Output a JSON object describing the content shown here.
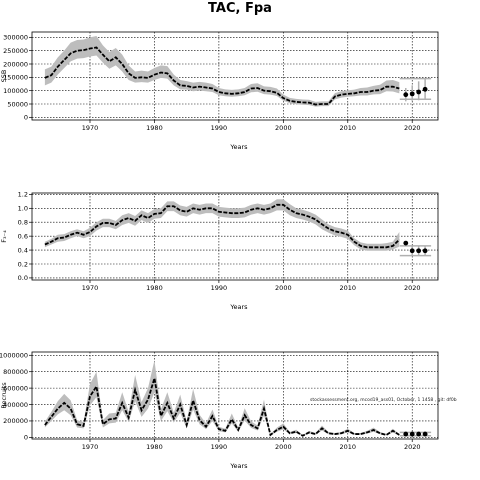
{
  "title": "TAC, Fpa",
  "watermark": "stockassessment.org, mcod19_ass01, October, 1 1458 , git: df0b",
  "colors": {
    "line": "#000000",
    "band": "#bdbdbd",
    "grid": "#000000",
    "forecast_band": "#b0b0b0"
  },
  "chart_data": [
    {
      "type": "line",
      "title": "",
      "xlabel": "Years",
      "ylabel": "SSB",
      "xlim": [
        1961,
        2024
      ],
      "ylim": [
        -10000,
        320000
      ],
      "xticks": [
        1970,
        1980,
        1990,
        2000,
        2010,
        2020
      ],
      "yticks": [
        0,
        50000,
        100000,
        150000,
        200000,
        250000,
        300000
      ],
      "ytick_labels": [
        "0",
        "50000",
        "100000",
        "150000",
        "200000",
        "250000",
        "300000"
      ],
      "grid": true,
      "series": [
        {
          "x": [
            1963,
            1964,
            1965,
            1966,
            1967,
            1968,
            1969,
            1970,
            1971,
            1972,
            1973,
            1974,
            1975,
            1976,
            1977,
            1978,
            1979,
            1980,
            1981,
            1982,
            1983,
            1984,
            1985,
            1986,
            1987,
            1988,
            1989,
            1990,
            1991,
            1992,
            1993,
            1994,
            1995,
            1996,
            1997,
            1998,
            1999,
            2000,
            2001,
            2002,
            2003,
            2004,
            2005,
            2006,
            2007,
            2008,
            2009,
            2010,
            2011,
            2012,
            2013,
            2014,
            2015,
            2016,
            2017,
            2018
          ],
          "y": [
            148000,
            158000,
            190000,
            215000,
            240000,
            250000,
            252000,
            258000,
            262000,
            235000,
            210000,
            225000,
            200000,
            165000,
            148000,
            150000,
            148000,
            160000,
            168000,
            165000,
            138000,
            120000,
            118000,
            112000,
            115000,
            112000,
            108000,
            95000,
            90000,
            88000,
            90000,
            95000,
            108000,
            110000,
            100000,
            98000,
            92000,
            72000,
            62000,
            58000,
            56000,
            55000,
            48000,
            50000,
            50000,
            78000,
            85000,
            88000,
            90000,
            95000,
            95000,
            100000,
            102000,
            115000,
            115000,
            108000
          ],
          "lower": [
            120000,
            130000,
            160000,
            185000,
            210000,
            220000,
            222000,
            228000,
            232000,
            205000,
            182000,
            195000,
            172000,
            140000,
            130000,
            132000,
            130000,
            140000,
            148000,
            145000,
            120000,
            105000,
            104000,
            98000,
            100000,
            98000,
            95000,
            83000,
            79000,
            77000,
            79000,
            83000,
            94000,
            96000,
            87000,
            85000,
            80000,
            62000,
            53000,
            49000,
            47000,
            46000,
            40000,
            42000,
            42000,
            67000,
            74000,
            77000,
            79000,
            82000,
            82000,
            86000,
            87000,
            98000,
            97000,
            90000
          ],
          "upper": [
            180000,
            190000,
            225000,
            250000,
            280000,
            290000,
            292000,
            300000,
            305000,
            270000,
            245000,
            260000,
            235000,
            195000,
            172000,
            175000,
            172000,
            185000,
            195000,
            192000,
            160000,
            140000,
            136000,
            130000,
            133000,
            130000,
            125000,
            110000,
            105000,
            103000,
            105000,
            110000,
            125000,
            128000,
            116000,
            114000,
            108000,
            85000,
            73000,
            69000,
            67000,
            66000,
            58000,
            60000,
            60000,
            91000,
            98000,
            101000,
            104000,
            110000,
            112000,
            118000,
            122000,
            138000,
            140000,
            132000
          ]
        }
      ],
      "forecast": {
        "x": [
          2019,
          2020,
          2021,
          2022
        ],
        "y": [
          85000,
          88000,
          95000,
          105000
        ],
        "lower": [
          60000,
          62000,
          64000,
          68000
        ],
        "upper": [
          110000,
          120000,
          135000,
          145000
        ]
      }
    },
    {
      "type": "line",
      "title": "",
      "xlabel": "Years",
      "ylabel": "F₃₋₄",
      "xlim": [
        1961,
        2024
      ],
      "ylim": [
        -0.03,
        1.22
      ],
      "xticks": [
        1970,
        1980,
        1990,
        2000,
        2010,
        2020
      ],
      "yticks": [
        0,
        0.2,
        0.4,
        0.6,
        0.8,
        1.0,
        1.2
      ],
      "ytick_labels": [
        "0.0",
        "0.2",
        "0.4",
        "0.6",
        "0.8",
        "1.0",
        "1.2"
      ],
      "grid": true,
      "series": [
        {
          "x": [
            1963,
            1964,
            1965,
            1966,
            1967,
            1968,
            1969,
            1970,
            1971,
            1972,
            1973,
            1974,
            1975,
            1976,
            1977,
            1978,
            1979,
            1980,
            1981,
            1982,
            1983,
            1984,
            1985,
            1986,
            1987,
            1988,
            1989,
            1990,
            1991,
            1992,
            1993,
            1994,
            1995,
            1996,
            1997,
            1998,
            1999,
            2000,
            2001,
            2002,
            2003,
            2004,
            2005,
            2006,
            2007,
            2008,
            2009,
            2010,
            2011,
            2012,
            2013,
            2014,
            2015,
            2016,
            2017,
            2018
          ],
          "y": [
            0.48,
            0.52,
            0.57,
            0.58,
            0.62,
            0.65,
            0.62,
            0.66,
            0.74,
            0.79,
            0.79,
            0.76,
            0.83,
            0.86,
            0.82,
            0.9,
            0.86,
            0.92,
            0.93,
            1.03,
            1.03,
            0.97,
            0.95,
            1.0,
            0.98,
            1.0,
            1.0,
            0.95,
            0.94,
            0.93,
            0.93,
            0.94,
            0.98,
            1.0,
            0.98,
            1.0,
            1.05,
            1.05,
            0.98,
            0.93,
            0.91,
            0.88,
            0.84,
            0.77,
            0.71,
            0.67,
            0.65,
            0.62,
            0.52,
            0.46,
            0.44,
            0.44,
            0.44,
            0.44,
            0.46,
            0.55
          ],
          "lower": [
            0.44,
            0.48,
            0.52,
            0.53,
            0.57,
            0.6,
            0.57,
            0.6,
            0.68,
            0.73,
            0.73,
            0.7,
            0.76,
            0.79,
            0.75,
            0.83,
            0.79,
            0.85,
            0.86,
            0.96,
            0.96,
            0.9,
            0.88,
            0.93,
            0.91,
            0.93,
            0.93,
            0.88,
            0.87,
            0.86,
            0.86,
            0.87,
            0.91,
            0.93,
            0.91,
            0.93,
            0.97,
            0.97,
            0.9,
            0.86,
            0.84,
            0.81,
            0.77,
            0.7,
            0.65,
            0.61,
            0.59,
            0.56,
            0.47,
            0.41,
            0.39,
            0.39,
            0.39,
            0.39,
            0.41,
            0.45
          ],
          "upper": [
            0.52,
            0.56,
            0.62,
            0.63,
            0.67,
            0.7,
            0.67,
            0.72,
            0.8,
            0.85,
            0.85,
            0.82,
            0.9,
            0.93,
            0.89,
            0.97,
            0.93,
            0.99,
            1.0,
            1.1,
            1.1,
            1.04,
            1.02,
            1.07,
            1.05,
            1.07,
            1.07,
            1.02,
            1.01,
            1.0,
            1.0,
            1.01,
            1.05,
            1.07,
            1.05,
            1.07,
            1.13,
            1.13,
            1.06,
            1.0,
            0.98,
            0.95,
            0.91,
            0.84,
            0.77,
            0.73,
            0.71,
            0.68,
            0.57,
            0.51,
            0.49,
            0.49,
            0.49,
            0.5,
            0.52,
            0.66
          ]
        }
      ],
      "forecast": {
        "x": [
          2019,
          2020,
          2021,
          2022
        ],
        "y": [
          0.5,
          0.39,
          0.39,
          0.39
        ],
        "lower": [
          0.5,
          0.32,
          0.32,
          0.32
        ],
        "upper": [
          0.5,
          0.46,
          0.46,
          0.46
        ]
      }
    },
    {
      "type": "line",
      "title": "",
      "xlabel": "Years",
      "ylabel": "Recruits",
      "xlim": [
        1961,
        2024
      ],
      "ylim": [
        -20000,
        1040000
      ],
      "xticks": [
        1970,
        1980,
        1990,
        2000,
        2010,
        2020
      ],
      "yticks": [
        0,
        200000,
        400000,
        600000,
        800000,
        1000000
      ],
      "ytick_labels": [
        "0",
        "200000",
        "400000",
        "600000",
        "800000",
        "1000000"
      ],
      "grid": true,
      "series": [
        {
          "x": [
            1963,
            1964,
            1965,
            1966,
            1967,
            1968,
            1969,
            1970,
            1971,
            1972,
            1973,
            1974,
            1975,
            1976,
            1977,
            1978,
            1979,
            1980,
            1981,
            1982,
            1983,
            1984,
            1985,
            1986,
            1987,
            1988,
            1989,
            1990,
            1991,
            1992,
            1993,
            1994,
            1995,
            1996,
            1997,
            1998,
            1999,
            2000,
            2001,
            2002,
            2003,
            2004,
            2005,
            2006,
            2007,
            2008,
            2009,
            2010,
            2011,
            2012,
            2013,
            2014,
            2015,
            2016,
            2017,
            2018
          ],
          "y": [
            150000,
            250000,
            350000,
            420000,
            350000,
            160000,
            140000,
            500000,
            620000,
            160000,
            220000,
            230000,
            420000,
            240000,
            580000,
            330000,
            460000,
            720000,
            260000,
            420000,
            230000,
            400000,
            150000,
            450000,
            210000,
            130000,
            260000,
            100000,
            80000,
            220000,
            90000,
            270000,
            150000,
            110000,
            350000,
            30000,
            90000,
            130000,
            50000,
            70000,
            20000,
            60000,
            40000,
            110000,
            50000,
            40000,
            50000,
            80000,
            40000,
            40000,
            60000,
            90000,
            50000,
            30000,
            80000,
            30000
          ],
          "lower": [
            120000,
            200000,
            280000,
            330000,
            270000,
            120000,
            110000,
            390000,
            490000,
            120000,
            170000,
            180000,
            330000,
            190000,
            440000,
            250000,
            350000,
            550000,
            200000,
            320000,
            180000,
            300000,
            110000,
            340000,
            160000,
            100000,
            200000,
            75000,
            60000,
            170000,
            68000,
            205000,
            115000,
            84000,
            265000,
            22000,
            68000,
            98000,
            38000,
            53000,
            15000,
            45000,
            30000,
            83000,
            38000,
            30000,
            38000,
            60000,
            30000,
            30000,
            45000,
            68000,
            38000,
            22000,
            60000,
            22000
          ],
          "upper": [
            190000,
            310000,
            440000,
            530000,
            450000,
            210000,
            185000,
            650000,
            800000,
            210000,
            290000,
            300000,
            550000,
            310000,
            760000,
            430000,
            600000,
            940000,
            340000,
            550000,
            300000,
            520000,
            200000,
            590000,
            275000,
            170000,
            340000,
            130000,
            105000,
            290000,
            118000,
            355000,
            195000,
            145000,
            460000,
            40000,
            118000,
            170000,
            66000,
            92000,
            27000,
            79000,
            53000,
            145000,
            66000,
            53000,
            66000,
            105000,
            53000,
            53000,
            79000,
            118000,
            66000,
            40000,
            105000,
            40000
          ]
        }
      ],
      "forecast": {
        "x": [
          2019,
          2020,
          2021,
          2022
        ],
        "y": [
          40000,
          40000,
          40000,
          40000
        ],
        "lower": [
          20000,
          20000,
          20000,
          20000
        ],
        "upper": [
          60000,
          60000,
          60000,
          60000
        ]
      }
    }
  ]
}
